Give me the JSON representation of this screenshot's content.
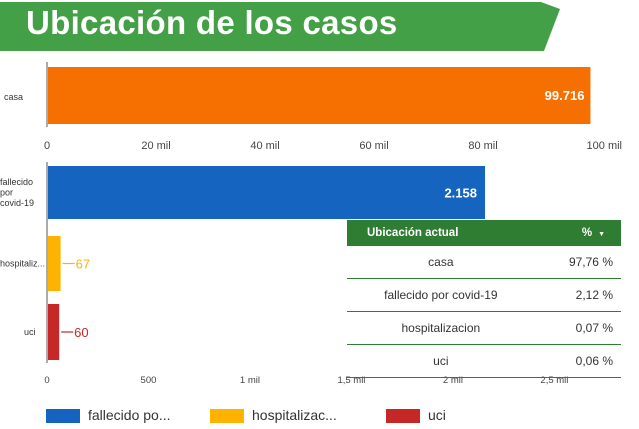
{
  "header": {
    "title": "Ubicación de los casos"
  },
  "colors": {
    "banner": "#43a047",
    "casa": "#f57000",
    "fallecido": "#1565c0",
    "hospitalizacion": "#ffb300",
    "uci": "#c62828",
    "table_header": "#2e7d32"
  },
  "chart_data": [
    {
      "type": "bar",
      "orientation": "horizontal",
      "categories": [
        "casa"
      ],
      "values": [
        99716
      ],
      "data_labels": [
        "99.716"
      ],
      "xlim": [
        0,
        100000
      ],
      "xticks": [
        0,
        20000,
        40000,
        60000,
        80000,
        100000
      ],
      "xtick_labels": [
        "0",
        "20 mil",
        "40 mil",
        "60 mil",
        "80 mil",
        "100 mil"
      ]
    },
    {
      "type": "bar",
      "orientation": "horizontal",
      "categories": [
        "fallecido por covid-19",
        "hospitaliz...",
        "uci"
      ],
      "category_lines": [
        [
          "fallecido",
          "por",
          "covid-19"
        ],
        [
          "hospitaliz..."
        ],
        [
          "uci"
        ]
      ],
      "values": [
        2158,
        67,
        60
      ],
      "data_labels": [
        "2.158",
        "67",
        "60"
      ],
      "xlim": [
        0,
        2700
      ],
      "xticks": [
        0,
        500,
        1000,
        1500,
        2000,
        2500
      ],
      "xtick_labels": [
        "0",
        "500",
        "1 mil",
        "1,5 mil",
        "2 mil",
        "2,5 mil"
      ],
      "legend": {
        "position": "bottom",
        "entries": [
          "fallecido po...",
          "hospitalizac...",
          "uci"
        ]
      }
    }
  ],
  "table": {
    "columns": {
      "location": "Ubicación actual",
      "percent": "%",
      "sort_glyph": "▼"
    },
    "rows": [
      {
        "location": "casa",
        "percent": "97,76 %"
      },
      {
        "location": "fallecido por covid-19",
        "percent": "2,12 %"
      },
      {
        "location": "hospitalizacion",
        "percent": "0,07 %"
      },
      {
        "location": "uci",
        "percent": "0,06 %"
      }
    ]
  }
}
